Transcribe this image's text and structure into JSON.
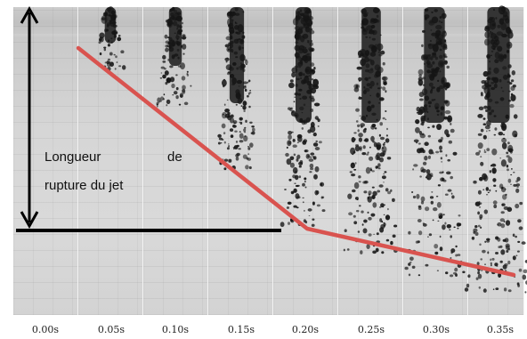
{
  "annotation": {
    "caption_line1_a": "Longueur",
    "caption_line1_b": "de",
    "caption_line2": "rupture du jet"
  },
  "time_labels": [
    "0.00s",
    "0.05s",
    "0.10s",
    "0.15s",
    "0.20s",
    "0.25s",
    "0.30s",
    "0.35s"
  ],
  "colors": {
    "trend_line": "#d9534f",
    "arrow": "#000000",
    "jet": "#1a1a1a"
  }
}
